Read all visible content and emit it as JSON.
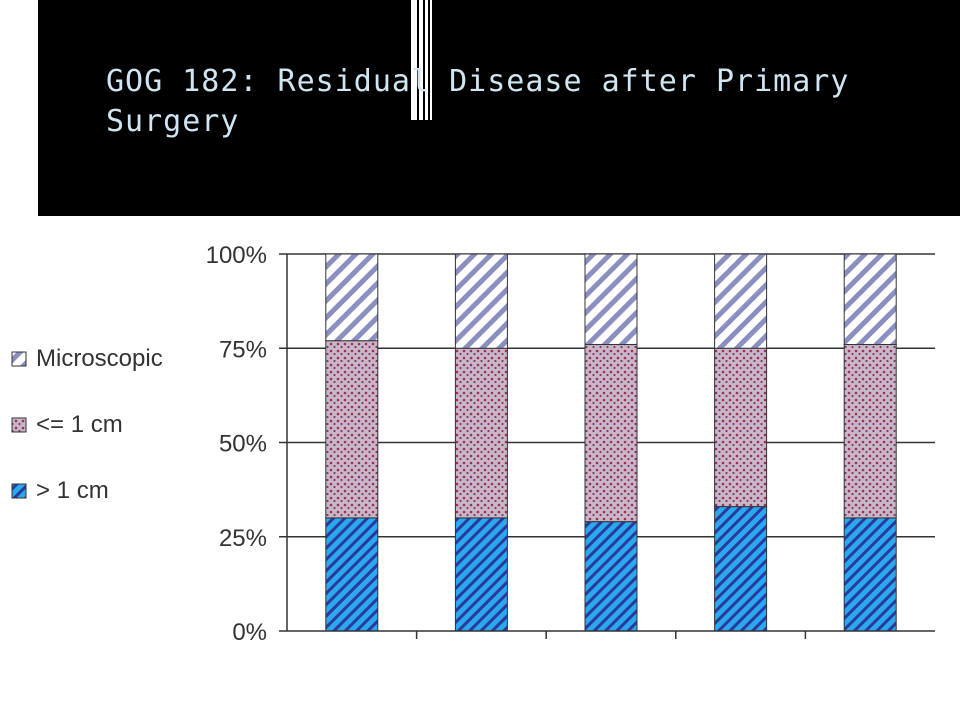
{
  "slide": {
    "title": "GOG 182: Residual Disease after Primary Surgery"
  },
  "colors": {
    "title_bg": "#000000",
    "title_text": "#cfe6f2",
    "micro_stripe": "#8a8fbf",
    "mid_fill": "#b8a6b8",
    "mid_dot": "#9a2f5a",
    "low_fill": "#2aa8f0",
    "low_stripe": "#2a3a9a"
  },
  "chart_data": {
    "type": "bar",
    "stacked": true,
    "categories": [
      "",
      "",
      "",
      "",
      ""
    ],
    "series": [
      {
        "name": "> 1 cm",
        "values": [
          30,
          30,
          29,
          33,
          30
        ],
        "color": "#2aa8f0",
        "pattern": "diagonal-dense"
      },
      {
        "name": "<= 1 cm",
        "values": [
          47,
          45,
          47,
          42,
          46
        ],
        "color": "#b8a6b8",
        "pattern": "dots"
      },
      {
        "name": "Microscopic",
        "values": [
          23,
          25,
          24,
          25,
          24
        ],
        "color": "#ffffff",
        "pattern": "diagonal-sparse"
      }
    ],
    "yticks": [
      "0%",
      "25%",
      "50%",
      "75%",
      "100%"
    ],
    "ylim": [
      0,
      100
    ],
    "grid": true,
    "legend": [
      "Microscopic",
      "<= 1 cm",
      "> 1 cm"
    ],
    "legend_position": "left"
  }
}
